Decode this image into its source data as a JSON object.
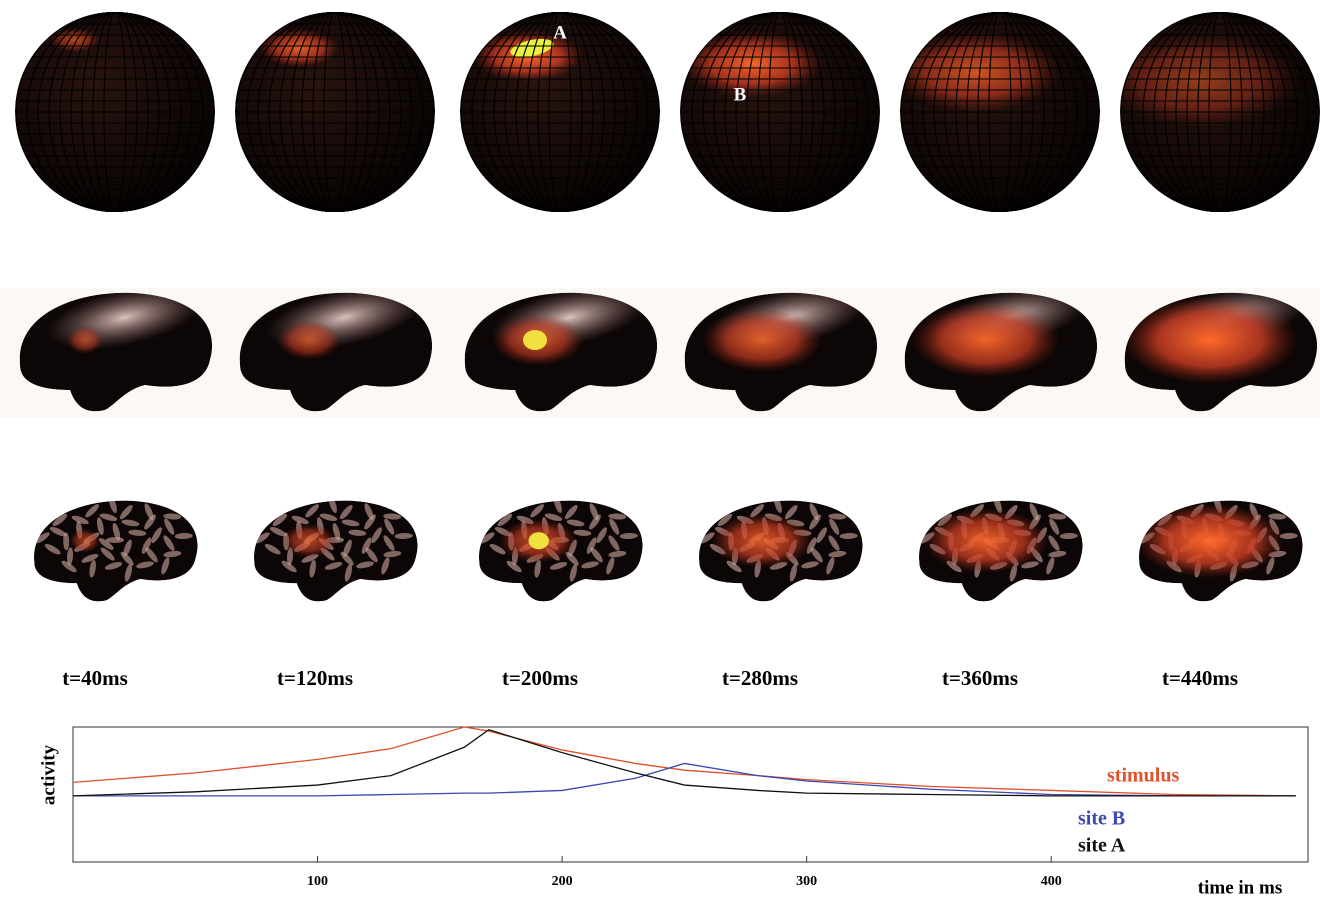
{
  "panels": {
    "times": [
      "t=40ms",
      "t=120ms",
      "t=200ms",
      "t=280ms",
      "t=360ms",
      "t=440ms"
    ],
    "annotations": [
      "A",
      "B"
    ]
  },
  "chart_data": {
    "type": "line",
    "xlabel": "time in ms",
    "ylabel": "activity",
    "x": [
      0,
      50,
      100,
      130,
      160,
      170,
      200,
      230,
      250,
      280,
      300,
      350,
      400,
      450,
      500
    ],
    "series": [
      {
        "name": "stimulus",
        "color": "#e0502a",
        "values": [
          0.59,
          0.66,
          0.76,
          0.84,
          1.0,
          0.97,
          0.83,
          0.73,
          0.68,
          0.64,
          0.61,
          0.56,
          0.53,
          0.5,
          0.49
        ]
      },
      {
        "name": "site B",
        "color": "#3a48b0",
        "values": [
          0.49,
          0.49,
          0.49,
          0.5,
          0.51,
          0.51,
          0.53,
          0.62,
          0.73,
          0.64,
          0.6,
          0.54,
          0.5,
          0.49,
          0.49
        ]
      },
      {
        "name": "site A",
        "color": "#111111",
        "values": [
          0.49,
          0.52,
          0.57,
          0.64,
          0.85,
          0.98,
          0.81,
          0.66,
          0.57,
          0.53,
          0.51,
          0.5,
          0.49,
          0.49,
          0.49
        ]
      }
    ],
    "xlim": [
      0,
      505
    ],
    "ylim": [
      0,
      1
    ],
    "xticks": [
      100,
      200,
      300,
      400
    ]
  }
}
